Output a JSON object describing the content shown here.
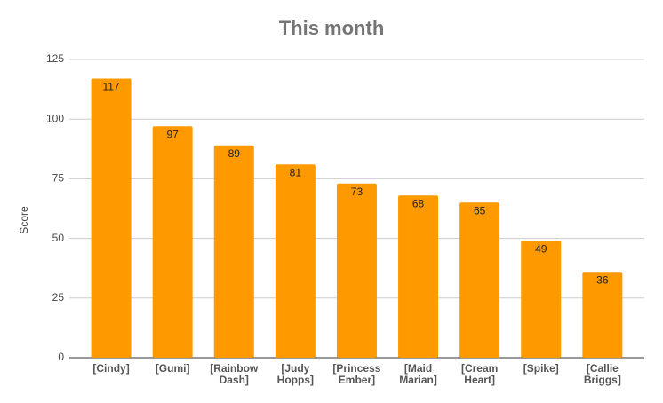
{
  "chart_data": {
    "type": "bar",
    "title": "This month",
    "y_label": "Score",
    "categories": [
      "[Cindy]",
      "[Gumi]",
      "[Rainbow Dash]",
      "[Judy Hopps]",
      "[Princess Ember]",
      "[Maid Marian]",
      "[Cream Heart]",
      "[Spike]",
      "[Callie Briggs]"
    ],
    "values": [
      117,
      97,
      89,
      81,
      73,
      68,
      65,
      49,
      36
    ],
    "color": "#ff9900",
    "ylim": [
      0,
      125
    ],
    "yticks": [
      0,
      25,
      50,
      75,
      100,
      125
    ],
    "grid": true
  }
}
